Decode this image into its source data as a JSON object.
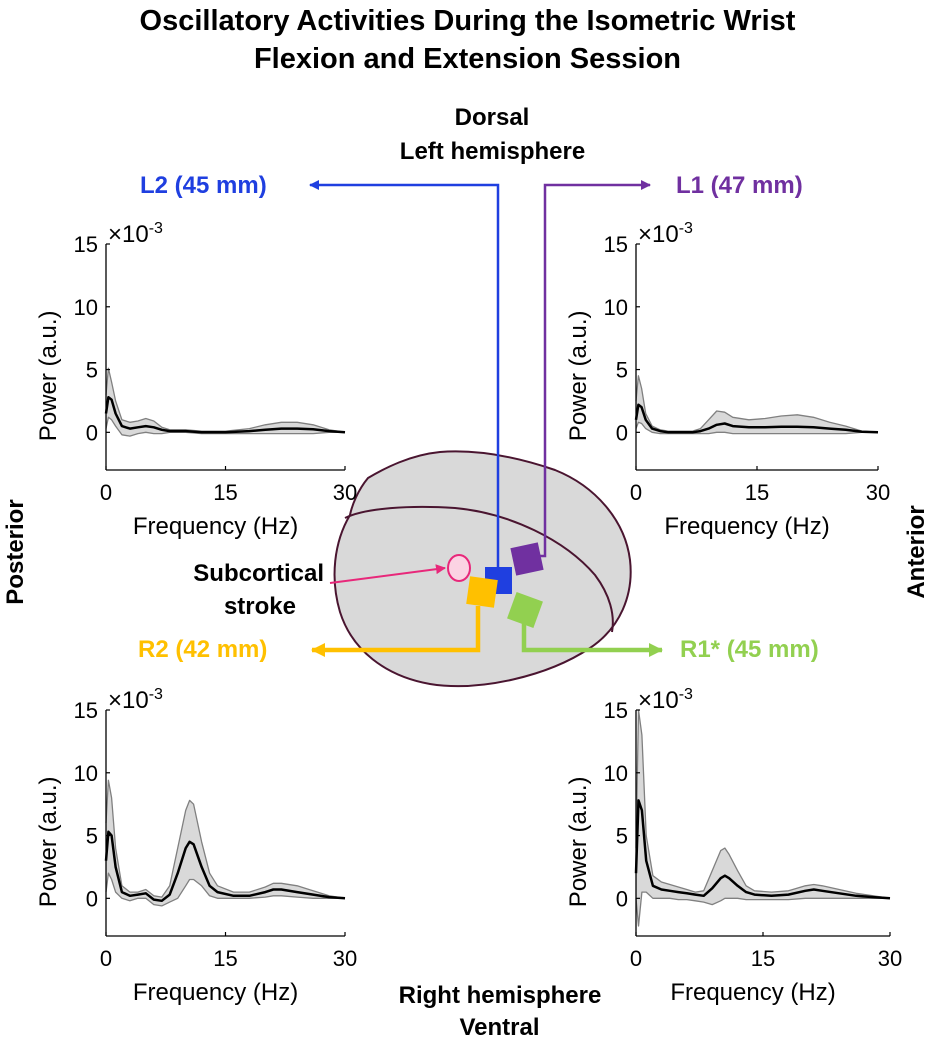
{
  "figure": {
    "title_line1": "Oscillatory Activities During the Isometric Wrist",
    "title_line2": "Flexion and Extension Session",
    "dorsal": "Dorsal",
    "left_hemisphere": "Left hemisphere",
    "right_hemisphere": "Right hemisphere",
    "ventral": "Ventral",
    "posterior": "Posterior",
    "anterior": "Anterior",
    "stroke_line1": "Subcortical",
    "stroke_line2": "stroke",
    "colors": {
      "L2": "#1f3fe0",
      "L1": "#7030a0",
      "R2": "#ffc000",
      "R1": "#92d050",
      "stroke": "#e8287a",
      "brain_fill": "#d9d9d9",
      "brain_edge": "#4a1530",
      "band": "#d9d9d9",
      "band_edge": "#808080",
      "mean": "#000000"
    }
  },
  "chart_data": [
    {
      "id": "L2",
      "type": "line",
      "label": "L2 (45 mm)",
      "xlabel": "Frequency (Hz)",
      "ylabel": "Power (a.u.)",
      "multiplier": "×10-3",
      "xlim": [
        0,
        30
      ],
      "ylim": [
        -3,
        15
      ],
      "xticks": [
        0,
        15,
        30
      ],
      "yticks": [
        0,
        5,
        10,
        15
      ],
      "x": [
        0,
        0.3,
        0.7,
        1.2,
        2,
        3,
        4,
        5,
        6,
        7,
        8,
        9,
        10,
        12,
        15,
        18,
        20,
        22,
        24,
        26,
        28,
        30
      ],
      "mean": [
        1.5,
        2.8,
        2.6,
        1.5,
        0.5,
        0.3,
        0.4,
        0.5,
        0.4,
        0.2,
        0.1,
        0.1,
        0.1,
        0.0,
        0.0,
        0.1,
        0.2,
        0.3,
        0.3,
        0.25,
        0.1,
        0.0
      ],
      "upper": [
        3.0,
        5.1,
        4.0,
        2.5,
        1.0,
        0.8,
        0.9,
        1.1,
        0.9,
        0.4,
        0.2,
        0.2,
        0.2,
        0.1,
        0.1,
        0.3,
        0.6,
        0.8,
        0.8,
        0.6,
        0.2,
        0.0
      ],
      "lower": [
        0.3,
        1.2,
        1.0,
        0.5,
        -0.2,
        -0.3,
        -0.1,
        0.0,
        -0.1,
        -0.1,
        0.0,
        0.0,
        0.0,
        -0.1,
        -0.1,
        -0.1,
        -0.1,
        -0.1,
        -0.1,
        -0.1,
        0.0,
        0.0
      ]
    },
    {
      "id": "L1",
      "type": "line",
      "label": "L1 (47 mm)",
      "xlabel": "Frequency (Hz)",
      "ylabel": "Power (a.u.)",
      "multiplier": "×10-3",
      "xlim": [
        0,
        30
      ],
      "ylim": [
        -3,
        15
      ],
      "xticks": [
        0,
        15,
        30
      ],
      "yticks": [
        0,
        5,
        10,
        15
      ],
      "x": [
        0,
        0.3,
        0.7,
        1.2,
        2,
        3,
        4,
        5,
        6,
        7,
        8,
        9,
        10,
        11,
        12,
        14,
        16,
        18,
        20,
        22,
        24,
        26,
        28,
        30
      ],
      "mean": [
        1.0,
        2.2,
        2.0,
        1.0,
        0.3,
        0.1,
        0.0,
        0.0,
        0.0,
        0.0,
        0.1,
        0.3,
        0.6,
        0.7,
        0.5,
        0.4,
        0.4,
        0.45,
        0.45,
        0.4,
        0.3,
        0.2,
        0.05,
        0.0
      ],
      "upper": [
        2.5,
        4.5,
        3.5,
        1.5,
        0.5,
        0.2,
        0.1,
        0.1,
        0.1,
        0.1,
        0.3,
        1.0,
        1.7,
        1.6,
        1.2,
        1.0,
        1.1,
        1.3,
        1.4,
        1.2,
        0.8,
        0.5,
        0.1,
        0.0
      ],
      "lower": [
        0.3,
        0.8,
        0.7,
        0.3,
        0.0,
        -0.1,
        -0.1,
        -0.1,
        -0.1,
        -0.1,
        -0.1,
        -0.1,
        0.0,
        0.0,
        -0.1,
        -0.1,
        -0.1,
        -0.1,
        -0.1,
        -0.1,
        -0.1,
        -0.1,
        0.0,
        0.0
      ]
    },
    {
      "id": "R2",
      "type": "line",
      "label": "R2  (42 mm)",
      "xlabel": "Frequency (Hz)",
      "ylabel": "Power (a.u.)",
      "multiplier": "×10-3",
      "xlim": [
        0,
        30
      ],
      "ylim": [
        -3,
        15
      ],
      "xticks": [
        0,
        15,
        30
      ],
      "yticks": [
        0,
        5,
        10,
        15
      ],
      "x": [
        0,
        0.3,
        0.7,
        1.2,
        2,
        3,
        4,
        5,
        6,
        7,
        8,
        9,
        10,
        10.5,
        11,
        12,
        13,
        14,
        16,
        18,
        20,
        21,
        22,
        24,
        26,
        28,
        30
      ],
      "mean": [
        3.0,
        5.3,
        5.0,
        2.5,
        0.5,
        0.2,
        0.3,
        0.4,
        -0.1,
        -0.2,
        0.3,
        2.0,
        4.0,
        4.5,
        4.3,
        2.5,
        1.0,
        0.5,
        0.2,
        0.2,
        0.5,
        0.7,
        0.7,
        0.5,
        0.3,
        0.1,
        0.0
      ],
      "upper": [
        6.0,
        9.4,
        8.0,
        4.0,
        1.0,
        0.5,
        0.5,
        0.7,
        0.2,
        0.1,
        1.0,
        4.0,
        7.0,
        7.8,
        7.5,
        4.5,
        2.0,
        1.0,
        0.5,
        0.5,
        0.9,
        1.2,
        1.2,
        1.0,
        0.6,
        0.2,
        0.0
      ],
      "lower": [
        0.5,
        2.0,
        1.5,
        0.5,
        0.0,
        -0.2,
        0.0,
        0.0,
        -0.5,
        -0.6,
        -0.3,
        0.0,
        1.0,
        1.5,
        1.5,
        1.0,
        0.2,
        0.0,
        0.0,
        0.0,
        0.1,
        0.2,
        0.2,
        0.1,
        0.0,
        0.0,
        0.0
      ]
    },
    {
      "id": "R1",
      "type": "line",
      "label": "R1* (45 mm)",
      "xlabel": "Frequency (Hz)",
      "ylabel": "Power (a.u.)",
      "multiplier": "×10-3",
      "xlim": [
        0,
        30
      ],
      "ylim": [
        -3,
        15
      ],
      "xticks": [
        0,
        15,
        30
      ],
      "yticks": [
        0,
        5,
        10,
        15
      ],
      "x": [
        0,
        0.3,
        0.7,
        1.2,
        2,
        3,
        4,
        5,
        6,
        7,
        8,
        9,
        10,
        10.5,
        11,
        12,
        13,
        14,
        16,
        18,
        20,
        21,
        22,
        24,
        26,
        28,
        30
      ],
      "mean": [
        2.0,
        7.8,
        7.0,
        3.0,
        1.0,
        0.7,
        0.6,
        0.5,
        0.4,
        0.3,
        0.2,
        0.8,
        1.6,
        1.8,
        1.6,
        1.0,
        0.5,
        0.3,
        0.2,
        0.3,
        0.6,
        0.7,
        0.6,
        0.4,
        0.2,
        0.1,
        0.0
      ],
      "upper": [
        4.0,
        15.0,
        13.0,
        5.0,
        1.8,
        1.3,
        1.1,
        0.9,
        0.7,
        0.5,
        0.6,
        2.2,
        3.8,
        4.0,
        3.5,
        2.2,
        1.0,
        0.6,
        0.5,
        0.6,
        1.0,
        1.1,
        1.0,
        0.7,
        0.4,
        0.2,
        0.0
      ],
      "lower": [
        0.0,
        -2.2,
        0.5,
        0.5,
        0.0,
        0.0,
        0.0,
        -0.1,
        -0.1,
        -0.2,
        -0.3,
        -0.5,
        -0.2,
        0.0,
        0.0,
        0.0,
        -0.1,
        -0.1,
        -0.1,
        -0.1,
        0.0,
        0.0,
        0.0,
        0.0,
        0.0,
        0.0,
        0.0
      ]
    }
  ]
}
